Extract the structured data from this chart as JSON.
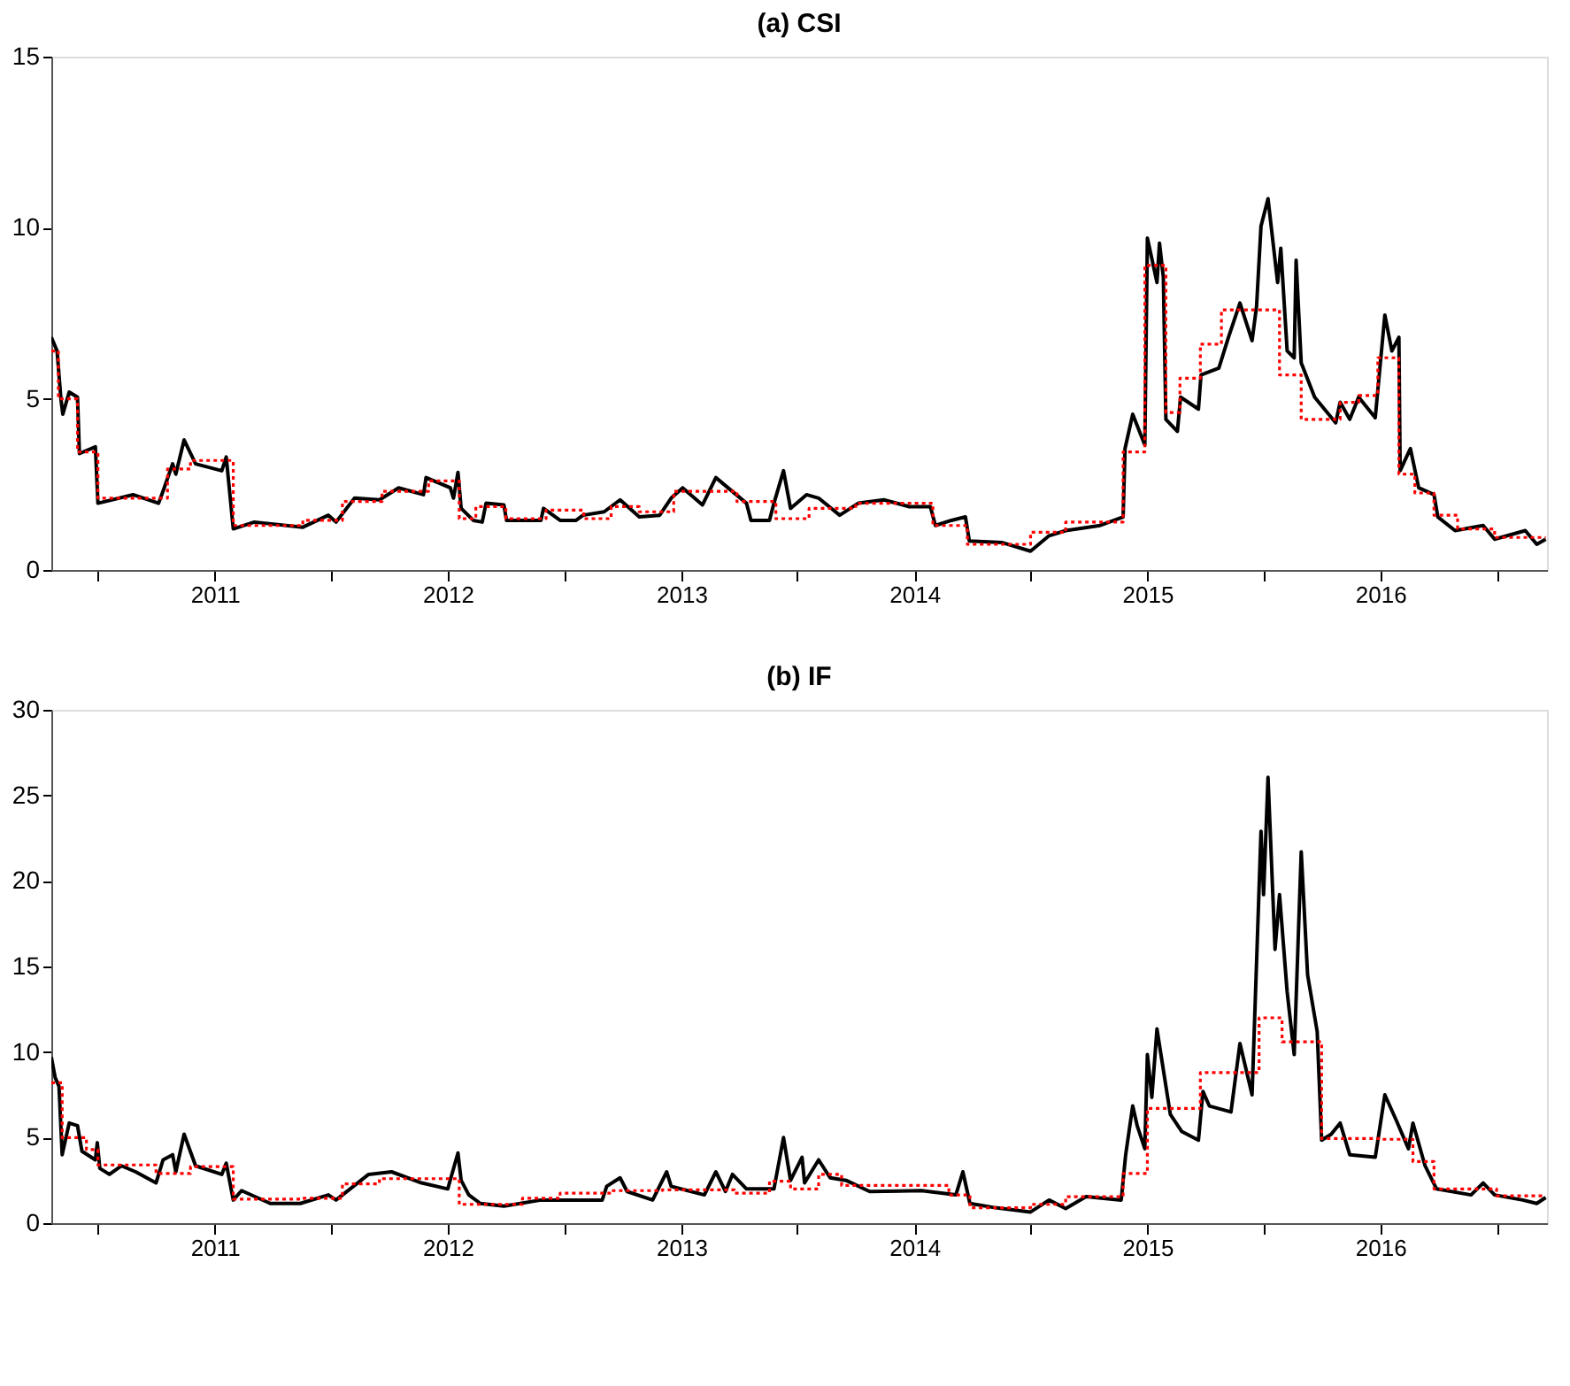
{
  "chart_data": [
    {
      "type": "line",
      "title": "(a) CSI",
      "xlim": [
        "2010-04-20",
        "2016-09-18"
      ],
      "ylim": [
        0,
        15
      ],
      "yticks": [
        0,
        5,
        10,
        15
      ],
      "xticks": [
        {
          "value": "2010-07",
          "label": null
        },
        "2011",
        {
          "value": "2011-07",
          "label": null
        },
        "2012",
        {
          "value": "2012-07",
          "label": null
        },
        "2013",
        {
          "value": "2013-07",
          "label": null
        },
        "2014",
        {
          "value": "2014-07",
          "label": null
        },
        "2015",
        {
          "value": "2015-07",
          "label": null
        },
        "2016",
        {
          "value": "2016-07",
          "label": null
        }
      ],
      "grid": false,
      "legend": false,
      "series": [
        {
          "type": "line",
          "color": "#000000",
          "line_style": "solid",
          "x": [
            "2010-04-20",
            "2010-04-29",
            "2010-05-05",
            "2010-05-08",
            "2010-05-18",
            "2010-05-31",
            "2010-06-03",
            "2010-06-28",
            "2010-07-02",
            "2010-08-26",
            "2010-10-05",
            "2010-10-12",
            "2010-10-27",
            "2010-11-01",
            "2010-11-14",
            "2010-12-02",
            "2011-01-12",
            "2011-01-19",
            "2011-01-30",
            "2011-03-04",
            "2011-05-19",
            "2011-06-28",
            "2011-07-10",
            "2011-08-08",
            "2011-09-16",
            "2011-10-16",
            "2011-11-24",
            "2011-11-28",
            "2012-01-05",
            "2012-01-10",
            "2012-01-17",
            "2012-01-22",
            "2012-02-10",
            "2012-02-24",
            "2012-03-01",
            "2012-03-29",
            "2012-04-02",
            "2012-05-26",
            "2012-05-30",
            "2012-06-25",
            "2012-07-20",
            "2012-07-31",
            "2012-09-02",
            "2012-09-27",
            "2012-10-27",
            "2012-11-28",
            "2012-12-16",
            "2013-01-03",
            "2013-02-03",
            "2013-02-24",
            "2013-04-13",
            "2013-04-20",
            "2013-05-19",
            "2013-05-26",
            "2013-06-10",
            "2013-06-21",
            "2013-07-16",
            "2013-08-04",
            "2013-09-06",
            "2013-10-05",
            "2013-11-14",
            "2013-12-24",
            "2014-01-26",
            "2014-02-03",
            "2014-02-28",
            "2014-03-22",
            "2014-03-28",
            "2014-05-19",
            "2014-07-02",
            "2014-07-31",
            "2014-08-26",
            "2014-10-19",
            "2014-11-24",
            "2014-11-27",
            "2014-12-09",
            "2014-12-28",
            "2015-01-01",
            "2015-01-16",
            "2015-01-20",
            "2015-01-26",
            "2015-01-30",
            "2015-02-17",
            "2015-02-22",
            "2015-03-22",
            "2015-03-26",
            "2015-04-23",
            "2015-05-08",
            "2015-05-26",
            "2015-06-14",
            "2015-06-21",
            "2015-06-28",
            "2015-07-09",
            "2015-07-24",
            "2015-07-29",
            "2015-08-08",
            "2015-08-19",
            "2015-08-22",
            "2015-08-30",
            "2015-09-20",
            "2015-10-23",
            "2015-10-30",
            "2015-11-14",
            "2015-11-28",
            "2015-12-24",
            "2016-01-08",
            "2016-01-19",
            "2016-01-30",
            "2016-02-01",
            "2016-02-17",
            "2016-03-01",
            "2016-03-25",
            "2016-03-31",
            "2016-04-27",
            "2016-06-10",
            "2016-06-28",
            "2016-08-15",
            "2016-09-02",
            "2016-09-16"
          ],
          "values": [
            6.8,
            6.4,
            5.0,
            4.55,
            5.2,
            5.05,
            3.4,
            3.6,
            1.95,
            2.2,
            1.95,
            2.3,
            3.1,
            2.8,
            3.8,
            3.1,
            2.9,
            3.3,
            1.2,
            1.4,
            1.25,
            1.6,
            1.4,
            2.1,
            2.05,
            2.4,
            2.2,
            2.7,
            2.4,
            2.1,
            2.85,
            1.8,
            1.45,
            1.4,
            1.95,
            1.9,
            1.45,
            1.45,
            1.8,
            1.45,
            1.45,
            1.6,
            1.7,
            2.05,
            1.55,
            1.6,
            2.1,
            2.4,
            1.9,
            2.7,
            1.95,
            1.45,
            1.45,
            1.95,
            2.9,
            1.8,
            2.2,
            2.1,
            1.6,
            1.95,
            2.05,
            1.85,
            1.85,
            1.3,
            1.45,
            1.55,
            0.85,
            0.8,
            0.55,
            1.0,
            1.15,
            1.3,
            1.55,
            3.55,
            4.55,
            3.65,
            9.7,
            8.4,
            9.55,
            8.55,
            4.4,
            4.05,
            5.05,
            4.7,
            5.7,
            5.9,
            6.8,
            7.8,
            6.7,
            7.7,
            10.05,
            10.85,
            8.4,
            9.4,
            6.4,
            6.2,
            9.05,
            6.05,
            5.05,
            4.3,
            4.9,
            4.4,
            5.05,
            4.45,
            7.45,
            6.4,
            6.8,
            2.9,
            3.55,
            2.4,
            2.2,
            1.55,
            1.15,
            1.3,
            0.9,
            1.15,
            0.75,
            0.9
          ]
        },
        {
          "type": "step",
          "color": "#ff0000",
          "line_style": "dotted",
          "x": [
            "2010-04-20",
            "2010-05-01",
            "2010-05-31",
            "2010-07-02",
            "2010-10-19",
            "2010-11-24",
            "2011-01-30",
            "2011-05-19",
            "2011-07-20",
            "2011-09-20",
            "2011-12-02",
            "2012-01-19",
            "2012-02-14",
            "2012-04-01",
            "2012-06-03",
            "2012-08-01",
            "2012-09-13",
            "2012-10-27",
            "2012-12-20",
            "2013-03-29",
            "2013-05-29",
            "2013-07-20",
            "2013-10-01",
            "2014-01-30",
            "2014-03-25",
            "2014-07-02",
            "2014-08-26",
            "2014-11-24",
            "2014-12-28",
            "2015-01-30",
            "2015-02-21",
            "2015-03-25",
            "2015-04-27",
            "2015-07-27",
            "2015-08-30",
            "2015-10-30",
            "2015-11-28",
            "2015-12-28",
            "2016-01-30",
            "2016-02-24",
            "2016-03-25",
            "2016-05-01",
            "2016-06-28",
            "2016-09-16"
          ],
          "values": [
            6.4,
            5.0,
            3.45,
            2.1,
            2.95,
            3.2,
            1.3,
            1.45,
            2.0,
            2.3,
            2.6,
            1.5,
            1.85,
            1.5,
            1.75,
            1.5,
            1.85,
            1.7,
            2.3,
            2.0,
            1.5,
            1.8,
            1.95,
            1.3,
            0.75,
            1.1,
            1.4,
            3.45,
            8.9,
            4.6,
            5.6,
            6.6,
            7.6,
            5.7,
            4.4,
            4.9,
            5.1,
            6.2,
            2.8,
            2.25,
            1.6,
            1.2,
            0.95,
            0.95
          ]
        }
      ]
    },
    {
      "type": "line",
      "title": "(b) IF",
      "xlim": [
        "2010-04-20",
        "2016-09-18"
      ],
      "ylim": [
        0,
        30
      ],
      "yticks": [
        0,
        5,
        10,
        15,
        20,
        25,
        30
      ],
      "xticks": [
        {
          "value": "2010-07",
          "label": null
        },
        "2011",
        {
          "value": "2011-07",
          "label": null
        },
        "2012",
        {
          "value": "2012-07",
          "label": null
        },
        "2013",
        {
          "value": "2013-07",
          "label": null
        },
        "2014",
        {
          "value": "2014-07",
          "label": null
        },
        "2015",
        {
          "value": "2015-07",
          "label": null
        },
        "2016",
        {
          "value": "2016-07",
          "label": null
        }
      ],
      "grid": false,
      "legend": false,
      "series": [
        {
          "type": "line",
          "color": "#000000",
          "line_style": "solid",
          "x": [
            "2010-04-20",
            "2010-04-26",
            "2010-05-02",
            "2010-05-07",
            "2010-05-18",
            "2010-05-31",
            "2010-06-07",
            "2010-06-28",
            "2010-07-01",
            "2010-07-05",
            "2010-07-20",
            "2010-08-08",
            "2010-08-30",
            "2010-10-01",
            "2010-10-12",
            "2010-10-27",
            "2010-11-01",
            "2010-11-14",
            "2010-12-02",
            "2011-01-12",
            "2011-01-19",
            "2011-01-30",
            "2011-02-12",
            "2011-03-29",
            "2011-05-15",
            "2011-06-28",
            "2011-07-10",
            "2011-08-30",
            "2011-10-05",
            "2011-11-21",
            "2012-01-01",
            "2012-01-17",
            "2012-01-22",
            "2012-02-03",
            "2012-02-21",
            "2012-03-29",
            "2012-05-26",
            "2012-07-24",
            "2012-08-30",
            "2012-09-06",
            "2012-09-27",
            "2012-10-08",
            "2012-11-17",
            "2012-12-09",
            "2012-12-16",
            "2013-02-06",
            "2013-02-24",
            "2013-03-11",
            "2013-03-22",
            "2013-04-13",
            "2013-05-26",
            "2013-06-10",
            "2013-06-21",
            "2013-07-09",
            "2013-07-13",
            "2013-08-04",
            "2013-08-22",
            "2013-09-16",
            "2013-10-23",
            "2014-01-12",
            "2014-03-07",
            "2014-03-18",
            "2014-03-29",
            "2014-05-08",
            "2014-07-02",
            "2014-07-31",
            "2014-08-26",
            "2014-09-27",
            "2014-11-21",
            "2014-11-28",
            "2014-12-09",
            "2014-12-16",
            "2014-12-28",
            "2015-01-01",
            "2015-01-08",
            "2015-01-16",
            "2015-02-06",
            "2015-02-24",
            "2015-03-22",
            "2015-03-29",
            "2015-04-08",
            "2015-05-12",
            "2015-05-26",
            "2015-06-14",
            "2015-06-28",
            "2015-07-02",
            "2015-07-09",
            "2015-07-20",
            "2015-07-27",
            "2015-08-08",
            "2015-08-19",
            "2015-08-30",
            "2015-09-09",
            "2015-09-24",
            "2015-10-01",
            "2015-10-16",
            "2015-10-30",
            "2015-11-14",
            "2015-12-24",
            "2016-01-08",
            "2016-01-26",
            "2016-02-14",
            "2016-02-21",
            "2016-03-11",
            "2016-03-29",
            "2016-05-22",
            "2016-06-10",
            "2016-06-28",
            "2016-08-11",
            "2016-09-02",
            "2016-09-16"
          ],
          "values": [
            9.7,
            8.5,
            8.0,
            4.0,
            5.85,
            5.7,
            4.2,
            3.7,
            4.7,
            3.2,
            2.85,
            3.35,
            3.0,
            2.35,
            3.7,
            4.0,
            3.0,
            5.2,
            3.35,
            2.85,
            3.5,
            1.35,
            1.9,
            1.15,
            1.15,
            1.65,
            1.35,
            2.85,
            3.0,
            2.35,
            2.0,
            4.1,
            2.5,
            1.65,
            1.15,
            1.0,
            1.35,
            1.35,
            1.35,
            2.15,
            2.65,
            1.85,
            1.35,
            3.0,
            2.15,
            1.65,
            3.0,
            1.85,
            2.85,
            2.0,
            2.0,
            5.0,
            2.5,
            3.85,
            2.35,
            3.7,
            2.65,
            2.5,
            1.85,
            1.9,
            1.65,
            3.0,
            1.15,
            0.9,
            0.65,
            1.35,
            0.85,
            1.55,
            1.35,
            4.0,
            6.85,
            5.7,
            4.35,
            9.85,
            7.35,
            11.35,
            6.35,
            5.35,
            4.85,
            7.7,
            6.85,
            6.5,
            10.5,
            7.5,
            22.9,
            19.2,
            26.05,
            16.0,
            19.2,
            13.5,
            9.85,
            21.7,
            14.5,
            11.2,
            4.85,
            5.2,
            5.85,
            4.0,
            3.85,
            7.5,
            6.0,
            4.35,
            5.85,
            3.35,
            2.0,
            1.65,
            2.35,
            1.65,
            1.35,
            1.15,
            1.5
          ]
        },
        {
          "type": "step",
          "color": "#ff0000",
          "line_style": "dotted",
          "x": [
            "2010-04-20",
            "2010-05-07",
            "2010-06-14",
            "2010-07-02",
            "2010-10-01",
            "2010-11-24",
            "2011-01-30",
            "2011-05-15",
            "2011-07-20",
            "2011-09-16",
            "2012-01-19",
            "2012-04-27",
            "2012-06-25",
            "2012-09-13",
            "2012-12-02",
            "2013-03-25",
            "2013-05-19",
            "2013-06-21",
            "2013-08-04",
            "2013-09-09",
            "2014-02-24",
            "2014-03-29",
            "2014-07-02",
            "2014-08-26",
            "2014-11-24",
            "2015-01-01",
            "2015-03-25",
            "2015-06-25",
            "2015-07-31",
            "2015-10-01",
            "2016-01-01",
            "2016-02-21",
            "2016-03-25",
            "2016-07-01",
            "2016-09-16"
          ],
          "values": [
            8.2,
            5.0,
            4.3,
            3.4,
            2.9,
            3.3,
            1.4,
            1.45,
            2.3,
            2.6,
            1.1,
            1.45,
            1.75,
            1.9,
            1.95,
            1.75,
            2.45,
            2.0,
            2.85,
            2.2,
            1.65,
            0.9,
            1.1,
            1.55,
            2.9,
            6.7,
            8.8,
            12.0,
            10.6,
            4.95,
            4.9,
            3.6,
            2.0,
            1.6,
            1.6
          ]
        }
      ]
    }
  ]
}
